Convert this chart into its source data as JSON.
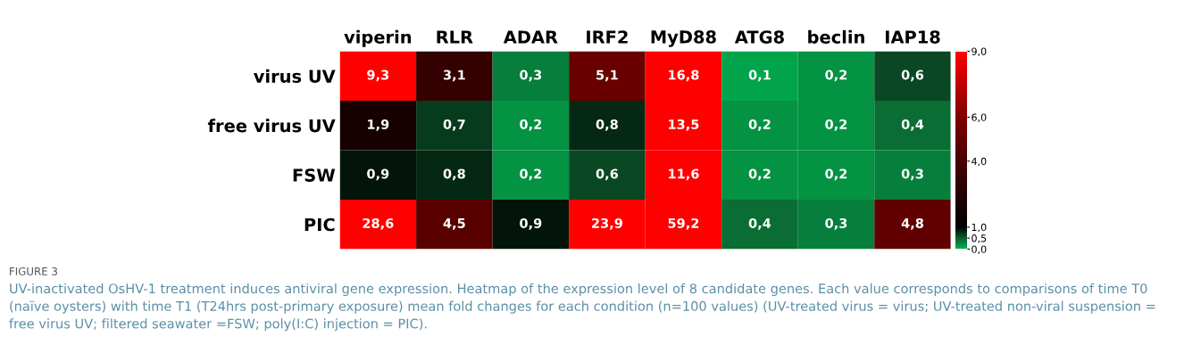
{
  "chart_data": {
    "type": "heatmap",
    "categories": [
      "viperin",
      "RLR",
      "ADAR",
      "IRF2",
      "MyD88",
      "ATG8",
      "beclin",
      "IAP18"
    ],
    "y_categories": [
      "virus UV",
      "free virus UV",
      "FSW",
      "PIC"
    ],
    "cells": [
      [
        9.3,
        3.1,
        0.3,
        5.1,
        16.8,
        0.1,
        0.2,
        0.6
      ],
      [
        1.9,
        0.7,
        0.2,
        0.8,
        13.5,
        0.2,
        0.2,
        0.4
      ],
      [
        0.9,
        0.8,
        0.2,
        0.6,
        11.6,
        0.2,
        0.2,
        0.3
      ],
      [
        28.6,
        4.5,
        0.9,
        23.9,
        59.2,
        0.4,
        0.3,
        4.8
      ]
    ],
    "cell_labels": [
      [
        "9,3",
        "3,1",
        "0,3",
        "5,1",
        "16,8",
        "0,1",
        "0,2",
        "0,6"
      ],
      [
        "1,9",
        "0,7",
        "0,2",
        "0,8",
        "13,5",
        "0,2",
        "0,2",
        "0,4"
      ],
      [
        "0,9",
        "0,8",
        "0,2",
        "0,6",
        "11,6",
        "0,2",
        "0,2",
        "0,3"
      ],
      [
        "28,6",
        "4,5",
        "0,9",
        "23,9",
        "59,2",
        "0,4",
        "0,3",
        "4,8"
      ]
    ],
    "clim": [
      0,
      9
    ],
    "cticks": [
      {
        "value": 0,
        "label": "0,0"
      },
      {
        "value": 0.5,
        "label": "0,5"
      },
      {
        "value": 1,
        "label": "1,0"
      },
      {
        "value": 4,
        "label": "4,0"
      },
      {
        "value": 6,
        "label": "6,0"
      },
      {
        "value": 9,
        "label": "9,0"
      }
    ],
    "colors": [
      "#00b050",
      "#0b5a2c",
      "#000000",
      "#4a0000",
      "#800000",
      "#ff0000"
    ],
    "annotations": [
      "FIGURE 3",
      "UV-inactivated OsHV-1 treatment induces antiviral gene expression. Heatmap of the expression level of 8 candidate genes. Each value corresponds to comparisons of time T0 (naïve oysters) with time T1 (T24hrs post-primary exposure) mean fold changes for each condition (n=100 values) (UV-treated virus = virus; UV-treated non-viral suspension = free virus UV; filtered seawater =FSW; poly(I:C) injection = PIC)."
    ]
  }
}
